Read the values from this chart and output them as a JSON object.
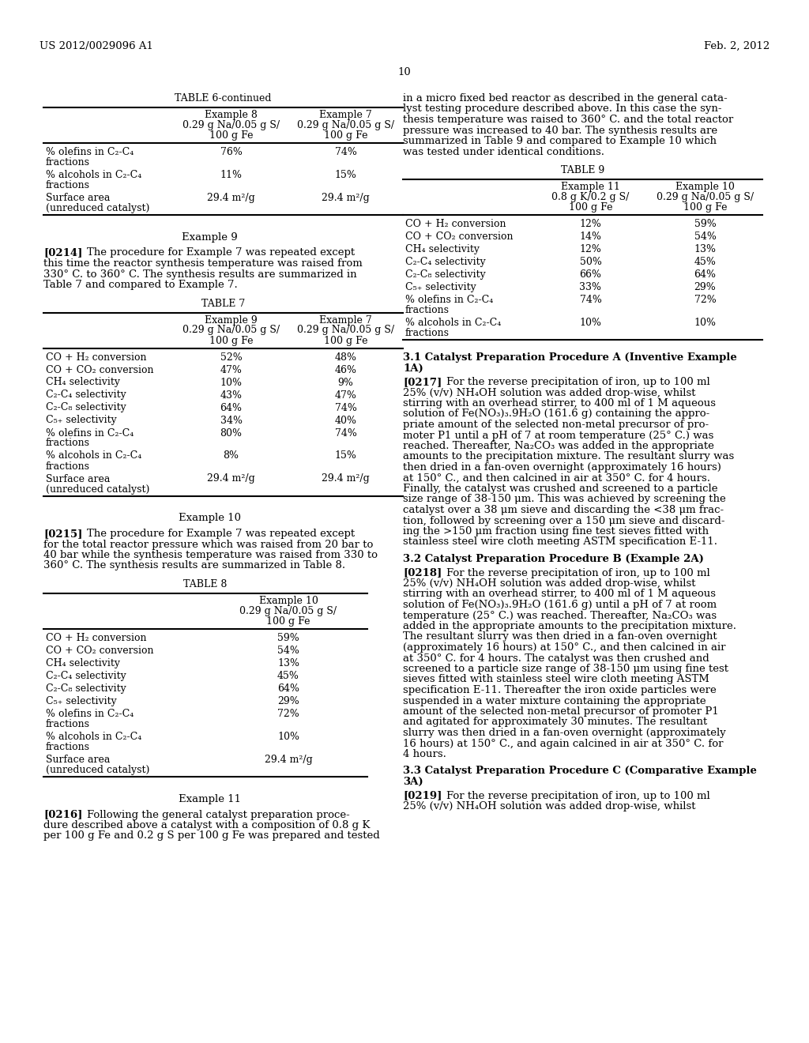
{
  "background_color": "#ffffff",
  "header_left": "US 2012/0029096 A1",
  "header_right": "Feb. 2, 2012",
  "page_number": "10",
  "left_column": {
    "table6_continued": {
      "title": "TABLE 6-continued",
      "col_headers": [
        "",
        "Example 8\n0.29 g Na/0.05 g S/\n100 g Fe",
        "Example 7\n0.29 g Na/0.05 g S/\n100 g Fe"
      ],
      "rows": [
        [
          "% olefins in C₂-C₄\nfractions",
          "76%",
          "74%"
        ],
        [
          "% alcohols in C₂-C₄\nfractions",
          "11%",
          "15%"
        ],
        [
          "Surface area\n(unreduced catalyst)",
          "29.4 m²/g",
          "29.4 m²/g"
        ]
      ]
    },
    "example9_heading": "Example 9",
    "example9_para": "[0214]    The procedure for Example 7 was repeated except\nthis time the reactor synthesis temperature was raised from\n330° C. to 360° C. The synthesis results are summarized in\nTable 7 and compared to Example 7.",
    "table7": {
      "title": "TABLE 7",
      "col_headers": [
        "",
        "Example 9\n0.29 g Na/0.05 g S/\n100 g Fe",
        "Example 7\n0.29 g Na/0.05 g S/\n100 g Fe"
      ],
      "rows": [
        [
          "CO + H₂ conversion",
          "52%",
          "48%"
        ],
        [
          "CO + CO₂ conversion",
          "47%",
          "46%"
        ],
        [
          "CH₄ selectivity",
          "10%",
          "9%"
        ],
        [
          "C₂-C₄ selectivity",
          "43%",
          "47%"
        ],
        [
          "C₂-C₈ selectivity",
          "64%",
          "74%"
        ],
        [
          "C₅₊ selectivity",
          "34%",
          "40%"
        ],
        [
          "% olefins in C₂-C₄\nfractions",
          "80%",
          "74%"
        ],
        [
          "% alcohols in C₂-C₄\nfractions",
          "8%",
          "15%"
        ],
        [
          "Surface area\n(unreduced catalyst)",
          "29.4 m²/g",
          "29.4 m²/g"
        ]
      ]
    },
    "example10_heading": "Example 10",
    "example10_para": "[0215]    The procedure for Example 7 was repeated except\nfor the total reactor pressure which was raised from 20 bar to\n40 bar while the synthesis temperature was raised from 330 to\n360° C. The synthesis results are summarized in Table 8.",
    "table8": {
      "title": "TABLE 8",
      "col_headers": [
        "",
        "Example 10\n0.29 g Na/0.05 g S/\n100 g Fe"
      ],
      "rows": [
        [
          "CO + H₂ conversion",
          "59%"
        ],
        [
          "CO + CO₂ conversion",
          "54%"
        ],
        [
          "CH₄ selectivity",
          "13%"
        ],
        [
          "C₂-C₄ selectivity",
          "45%"
        ],
        [
          "C₂-C₈ selectivity",
          "64%"
        ],
        [
          "C₅₊ selectivity",
          "29%"
        ],
        [
          "% olefins in C₂-C₄\nfractions",
          "72%"
        ],
        [
          "% alcohols in C₂-C₄\nfractions",
          "10%"
        ],
        [
          "Surface area\n(unreduced catalyst)",
          "29.4 m²/g"
        ]
      ]
    },
    "example11_heading": "Example 11",
    "example11_para": "[0216]    Following the general catalyst preparation proce-\ndure described above a catalyst with a composition of 0.8 g K\nper 100 g Fe and 0.2 g S per 100 g Fe was prepared and tested"
  },
  "right_column": {
    "intro_para": "in a micro fixed bed reactor as described in the general cata-\nlyst testing procedure described above. In this case the syn-\nthesis temperature was raised to 360° C. and the total reactor\npressure was increased to 40 bar. The synthesis results are\nsummarized in Table 9 and compared to Example 10 which\nwas tested under identical conditions.",
    "table9": {
      "title": "TABLE 9",
      "col_headers": [
        "",
        "Example 11\n0.8 g K/0.2 g S/\n100 g Fe",
        "Example 10\n0.29 g Na/0.05 g S/\n100 g Fe"
      ],
      "rows": [
        [
          "CO + H₂ conversion",
          "12%",
          "59%"
        ],
        [
          "CO + CO₂ conversion",
          "14%",
          "54%"
        ],
        [
          "CH₄ selectivity",
          "12%",
          "13%"
        ],
        [
          "C₂-C₄ selectivity",
          "50%",
          "45%"
        ],
        [
          "C₂-C₈ selectivity",
          "66%",
          "64%"
        ],
        [
          "C₅₊ selectivity",
          "33%",
          "29%"
        ],
        [
          "% olefins in C₂-C₄\nfractions",
          "74%",
          "72%"
        ],
        [
          "% alcohols in C₂-C₄\nfractions",
          "10%",
          "10%"
        ]
      ]
    },
    "section31_heading": "3.1 Catalyst Preparation Procedure A (Inventive Example\n1A)",
    "section31_para": "[0217]    For the reverse precipitation of iron, up to 100 ml\n25% (v/v) NH₄OH solution was added drop-wise, whilst\nstirring with an overhead stirrer, to 400 ml of 1 M aqueous\nsolution of Fe(NO₃)₃.9H₂O (161.6 g) containing the appro-\npriate amount of the selected non-metal precursor of pro-\nmoter P1 until a pH of 7 at room temperature (25° C.) was\nreached. Thereafter, Na₂CO₃ was added in the appropriate\namounts to the precipitation mixture. The resultant slurry was\nthen dried in a fan-oven overnight (approximately 16 hours)\nat 150° C., and then calcined in air at 350° C. for 4 hours.\nFinally, the catalyst was crushed and screened to a particle\nsize range of 38-150 μm. This was achieved by screening the\ncatalyst over a 38 μm sieve and discarding the <38 μm frac-\ntion, followed by screening over a 150 μm sieve and discard-\ning the >150 μm fraction using fine test sieves fitted with\nstainless steel wire cloth meeting ASTM specification E-11.",
    "section32_heading": "3.2 Catalyst Preparation Procedure B (Example 2A)",
    "section32_para": "[0218]    For the reverse precipitation of iron, up to 100 ml\n25% (v/v) NH₄OH solution was added drop-wise, whilst\nstirring with an overhead stirrer, to 400 ml of 1 M aqueous\nsolution of Fe(NO₃)₃.9H₂O (161.6 g) until a pH of 7 at room\ntemperature (25° C.) was reached. Thereafter, Na₂CO₃ was\nadded in the appropriate amounts to the precipitation mixture.\nThe resultant slurry was then dried in a fan-oven overnight\n(approximately 16 hours) at 150° C., and then calcined in air\nat 350° C. for 4 hours. The catalyst was then crushed and\nscreened to a particle size range of 38-150 μm using fine test\nsieves fitted with stainless steel wire cloth meeting ASTM\nspecification E-11. Thereafter the iron oxide particles were\nsuspended in a water mixture containing the appropriate\namount of the selected non-metal precursor of promoter P1\nand agitated for approximately 30 minutes. The resultant\nslurry was then dried in a fan-oven overnight (approximately\n16 hours) at 150° C., and again calcined in air at 350° C. for\n4 hours.",
    "section33_heading": "3.3 Catalyst Preparation Procedure C (Comparative Example\n3A)",
    "section33_para": "[0219]    For the reverse precipitation of iron, up to 100 ml\n25% (v/v) NH₄OH solution was added drop-wise, whilst"
  }
}
